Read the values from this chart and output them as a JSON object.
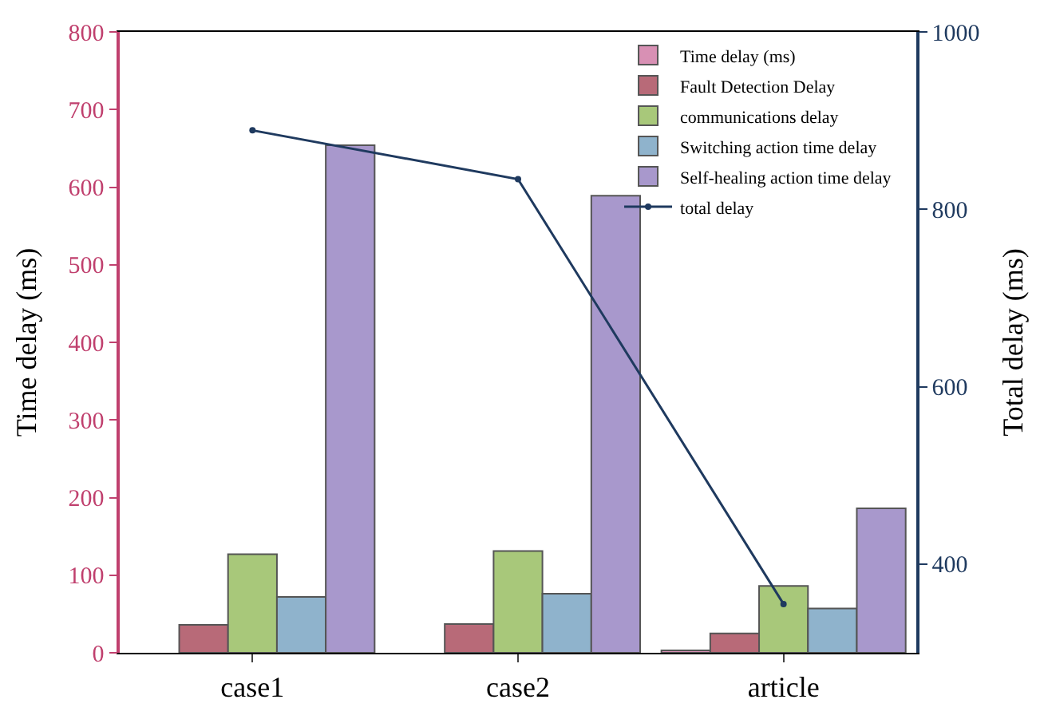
{
  "chart_data": {
    "type": "bar",
    "categories": [
      "case1",
      "case2",
      "article"
    ],
    "ylabel": "Time delay (ms)",
    "y2label": "Total delay (ms)",
    "ylim": [
      0,
      800
    ],
    "yticks": [
      0,
      100,
      200,
      300,
      400,
      500,
      600,
      700,
      800
    ],
    "y2lim": [
      300,
      1000
    ],
    "y2ticks": [
      400,
      600,
      800,
      1000
    ],
    "legend": "top right",
    "series": [
      {
        "name": "Time delay (ms)",
        "color": "#d890b4",
        "values": [
          null,
          null,
          3
        ]
      },
      {
        "name": "Fault Detection Delay",
        "color": "#b86a78",
        "values": [
          36,
          37,
          25
        ]
      },
      {
        "name": "communications delay",
        "color": "#a8c87a",
        "values": [
          127,
          131,
          86
        ]
      },
      {
        "name": "Switching action time delay",
        "color": "#8fb3cc",
        "values": [
          72,
          76,
          57
        ]
      },
      {
        "name": "Self-healing action time delay",
        "color": "#a898cc",
        "values": [
          654,
          589,
          186
        ]
      },
      {
        "name": "total delay",
        "type": "line",
        "axis": "y2",
        "color": "#1f3a5f",
        "marker": "circle",
        "line_style": "solid",
        "values": [
          889,
          834,
          355
        ]
      }
    ]
  }
}
